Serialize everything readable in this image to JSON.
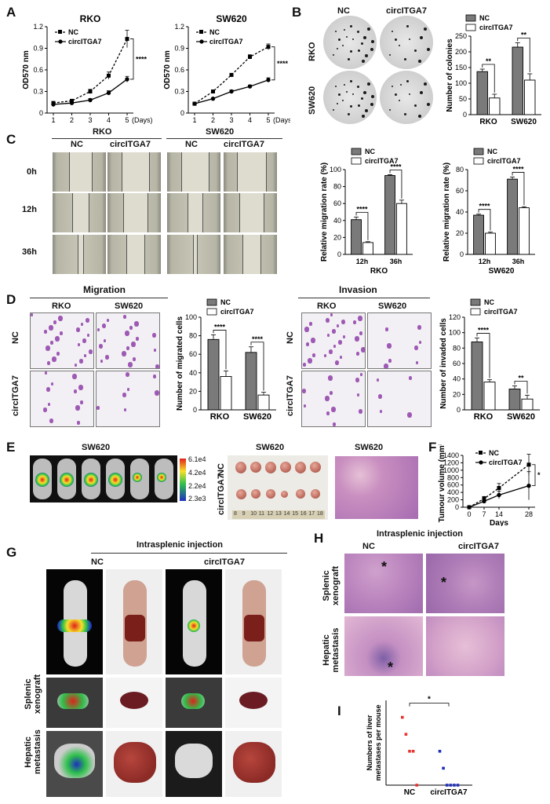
{
  "panels": {
    "A": {
      "letter": "A",
      "charts": [
        {
          "title": "RKO",
          "ylabel": "OD570 nm",
          "xlabel_suffix": "(Days)",
          "legend": [
            "NC",
            "circITGA7"
          ],
          "significance": "****"
        },
        {
          "title": "SW620",
          "ylabel": "OD570 nm",
          "xlabel_suffix": "(Days)",
          "legend": [
            "NC",
            "circITGA7"
          ],
          "significance": "****"
        }
      ]
    },
    "B": {
      "letter": "B",
      "col_labels": [
        "NC",
        "circITGA7"
      ],
      "row_labels": [
        "RKO",
        "SW620"
      ],
      "chart": {
        "ylabel": "Number of colonies",
        "legend": [
          "NC",
          "circITGA7"
        ],
        "significance": [
          "**",
          "**"
        ]
      }
    },
    "C": {
      "letter": "C",
      "group_labels": [
        "RKO",
        "SW620"
      ],
      "col_labels": [
        "NC",
        "circITGA7",
        "NC",
        "circITGA7"
      ],
      "row_labels": [
        "0h",
        "12h",
        "36h"
      ],
      "charts": [
        {
          "ylabel": "Relative migration rate (%)",
          "xlabel": "RKO",
          "legend": [
            "NC",
            "circITGA7"
          ],
          "significance": [
            "****",
            "****"
          ]
        },
        {
          "ylabel": "Relative migration rate (%)",
          "xlabel": "SW620",
          "legend": [
            "NC",
            "circITGA7"
          ],
          "significance": [
            "****",
            "****"
          ]
        }
      ]
    },
    "D": {
      "letter": "D",
      "migration_title": "Migration",
      "invasion_title": "Invasion",
      "col_labels": [
        "RKO",
        "SW620"
      ],
      "row_labels": [
        "NC",
        "circITGA7"
      ],
      "charts": [
        {
          "ylabel": "Number of migrated cells",
          "legend": [
            "NC",
            "circITGA7"
          ],
          "significance": [
            "****",
            "****"
          ]
        },
        {
          "ylabel": "Number of invaded cells",
          "legend": [
            "NC",
            "circITGA7"
          ],
          "significance": [
            "****",
            "**"
          ]
        }
      ]
    },
    "E": {
      "letter": "E",
      "title_imaging": "SW620",
      "title_tumours": "SW620",
      "title_he": "SW620",
      "colorbar": [
        "6.1e4",
        "4.2e4",
        "2.2e4",
        "2.3e3"
      ],
      "row_labels": [
        "NC",
        "circITGA7"
      ],
      "ruler": [
        "8",
        "9",
        "10",
        "11",
        "12",
        "13",
        "14",
        "15",
        "16",
        "17",
        "18"
      ]
    },
    "F": {
      "letter": "F",
      "chart": {
        "ylabel": "Tumour volume (mm³)",
        "xlabel": "Days",
        "legend": [
          "NC",
          "circITGA7"
        ],
        "significance": "*"
      }
    },
    "G": {
      "letter": "G",
      "title": "Intrasplenic injection",
      "col_labels": [
        "NC",
        "circITGA7"
      ],
      "row_labels": [
        "Splenic xenograft",
        "Hepatic metastasis"
      ]
    },
    "H": {
      "letter": "H",
      "title": "Intrasplenic injection",
      "col_labels": [
        "NC",
        "circITGA7"
      ],
      "row_labels": [
        "Splenic xenograft",
        "Hepatic metastasis"
      ],
      "star": "*"
    },
    "I": {
      "letter": "I",
      "chart": {
        "ylabel": "Numbers of liver metastases per mouse",
        "significance": "*"
      }
    }
  },
  "chart_data": [
    {
      "id": "A-RKO",
      "type": "line",
      "title": "RKO",
      "x": [
        1,
        2,
        3,
        4,
        5
      ],
      "xlabel": "(Days)",
      "ylabel": "OD570 nm",
      "ylim": [
        0,
        1.2
      ],
      "yticks": [
        0,
        0.3,
        0.6,
        0.9,
        1.2
      ],
      "series": [
        {
          "name": "NC",
          "values": [
            0.14,
            0.17,
            0.3,
            0.52,
            1.03
          ],
          "errors": [
            0.02,
            0.02,
            0.03,
            0.05,
            0.12
          ],
          "style": "dashed-square"
        },
        {
          "name": "circITGA7",
          "values": [
            0.12,
            0.14,
            0.18,
            0.28,
            0.47
          ],
          "errors": [
            0.02,
            0.02,
            0.02,
            0.03,
            0.04
          ],
          "style": "solid-circle"
        }
      ]
    },
    {
      "id": "A-SW620",
      "type": "line",
      "title": "SW620",
      "x": [
        1,
        2,
        3,
        4,
        5
      ],
      "xlabel": "(Days)",
      "ylabel": "OD570 nm",
      "ylim": [
        0,
        1.2
      ],
      "yticks": [
        0,
        0.3,
        0.6,
        0.9,
        1.2
      ],
      "series": [
        {
          "name": "NC",
          "values": [
            0.13,
            0.3,
            0.53,
            0.78,
            0.92
          ],
          "errors": [
            0.01,
            0.02,
            0.02,
            0.03,
            0.04
          ],
          "style": "dashed-square"
        },
        {
          "name": "circITGA7",
          "values": [
            0.13,
            0.2,
            0.3,
            0.37,
            0.46
          ],
          "errors": [
            0.01,
            0.01,
            0.02,
            0.02,
            0.03
          ],
          "style": "solid-circle"
        }
      ]
    },
    {
      "id": "B-colonies",
      "type": "bar",
      "categories": [
        "RKO",
        "SW620"
      ],
      "ylabel": "Number of colonies",
      "ylim": [
        0,
        250
      ],
      "yticks": [
        0,
        50,
        100,
        150,
        200,
        250
      ],
      "series": [
        {
          "name": "NC",
          "values": [
            137,
            215
          ],
          "errors": [
            8,
            14
          ]
        },
        {
          "name": "circITGA7",
          "values": [
            53,
            110
          ],
          "errors": [
            12,
            20
          ]
        }
      ]
    },
    {
      "id": "C-RKO",
      "type": "bar",
      "categories": [
        "12h",
        "36h"
      ],
      "xlabel": "RKO",
      "ylabel": "Relative migration rate (%)",
      "ylim": [
        0,
        100
      ],
      "yticks": [
        0,
        20,
        40,
        60,
        80,
        100
      ],
      "series": [
        {
          "name": "NC",
          "values": [
            41,
            93
          ],
          "errors": [
            3,
            1
          ]
        },
        {
          "name": "circITGA7",
          "values": [
            14,
            60
          ],
          "errors": [
            1,
            4
          ]
        }
      ]
    },
    {
      "id": "C-SW620",
      "type": "bar",
      "categories": [
        "12h",
        "36h"
      ],
      "xlabel": "SW620",
      "ylabel": "Relative migration rate (%)",
      "ylim": [
        0,
        80
      ],
      "yticks": [
        0,
        20,
        40,
        60,
        80
      ],
      "series": [
        {
          "name": "NC",
          "values": [
            37,
            71
          ],
          "errors": [
            1,
            2
          ]
        },
        {
          "name": "circITGA7",
          "values": [
            20,
            44
          ],
          "errors": [
            1,
            1
          ]
        }
      ]
    },
    {
      "id": "D-migration",
      "type": "bar",
      "categories": [
        "RKO",
        "SW620"
      ],
      "ylabel": "Number of migrated cells",
      "ylim": [
        0,
        100
      ],
      "yticks": [
        0,
        20,
        40,
        60,
        80,
        100
      ],
      "series": [
        {
          "name": "NC",
          "values": [
            76,
            62
          ],
          "errors": [
            5,
            6
          ]
        },
        {
          "name": "circITGA7",
          "values": [
            36,
            16
          ],
          "errors": [
            6,
            3
          ]
        }
      ]
    },
    {
      "id": "D-invasion",
      "type": "bar",
      "categories": [
        "RKO",
        "SW620"
      ],
      "ylabel": "Number of invaded cells",
      "ylim": [
        0,
        120
      ],
      "yticks": [
        0,
        20,
        40,
        60,
        80,
        100,
        120
      ],
      "series": [
        {
          "name": "NC",
          "values": [
            88,
            27
          ],
          "errors": [
            5,
            4
          ]
        },
        {
          "name": "circITGA7",
          "values": [
            36,
            14
          ],
          "errors": [
            3,
            5
          ]
        }
      ]
    },
    {
      "id": "F-tumour",
      "type": "line",
      "x": [
        0,
        7,
        14,
        28
      ],
      "xlabel": "Days",
      "ylabel": "Tumour volume (mm³)",
      "ylim": [
        0,
        1400
      ],
      "yticks": [
        0,
        200,
        400,
        600,
        800,
        1000,
        1200,
        1400
      ],
      "series": [
        {
          "name": "NC",
          "values": [
            0,
            230,
            520,
            1150
          ],
          "errors": [
            0,
            60,
            120,
            280
          ],
          "style": "dashed-square"
        },
        {
          "name": "circITGA7",
          "values": [
            0,
            160,
            330,
            580
          ],
          "errors": [
            0,
            40,
            100,
            380
          ],
          "style": "solid-circle"
        }
      ]
    },
    {
      "id": "I-liver",
      "type": "scatter",
      "categories": [
        "NC",
        "circITGA7"
      ],
      "ylabel": "Numbers of liver metastases per mouse",
      "ylim": [
        0,
        5
      ],
      "yticks": [
        0,
        1,
        2,
        3,
        4,
        5
      ],
      "series": [
        {
          "name": "NC",
          "values": [
            4,
            3,
            2,
            2,
            0
          ],
          "color": "#e8322c"
        },
        {
          "name": "circITGA7",
          "values": [
            2,
            1,
            0,
            0,
            0,
            0
          ],
          "color": "#1f2fb8"
        }
      ]
    }
  ]
}
